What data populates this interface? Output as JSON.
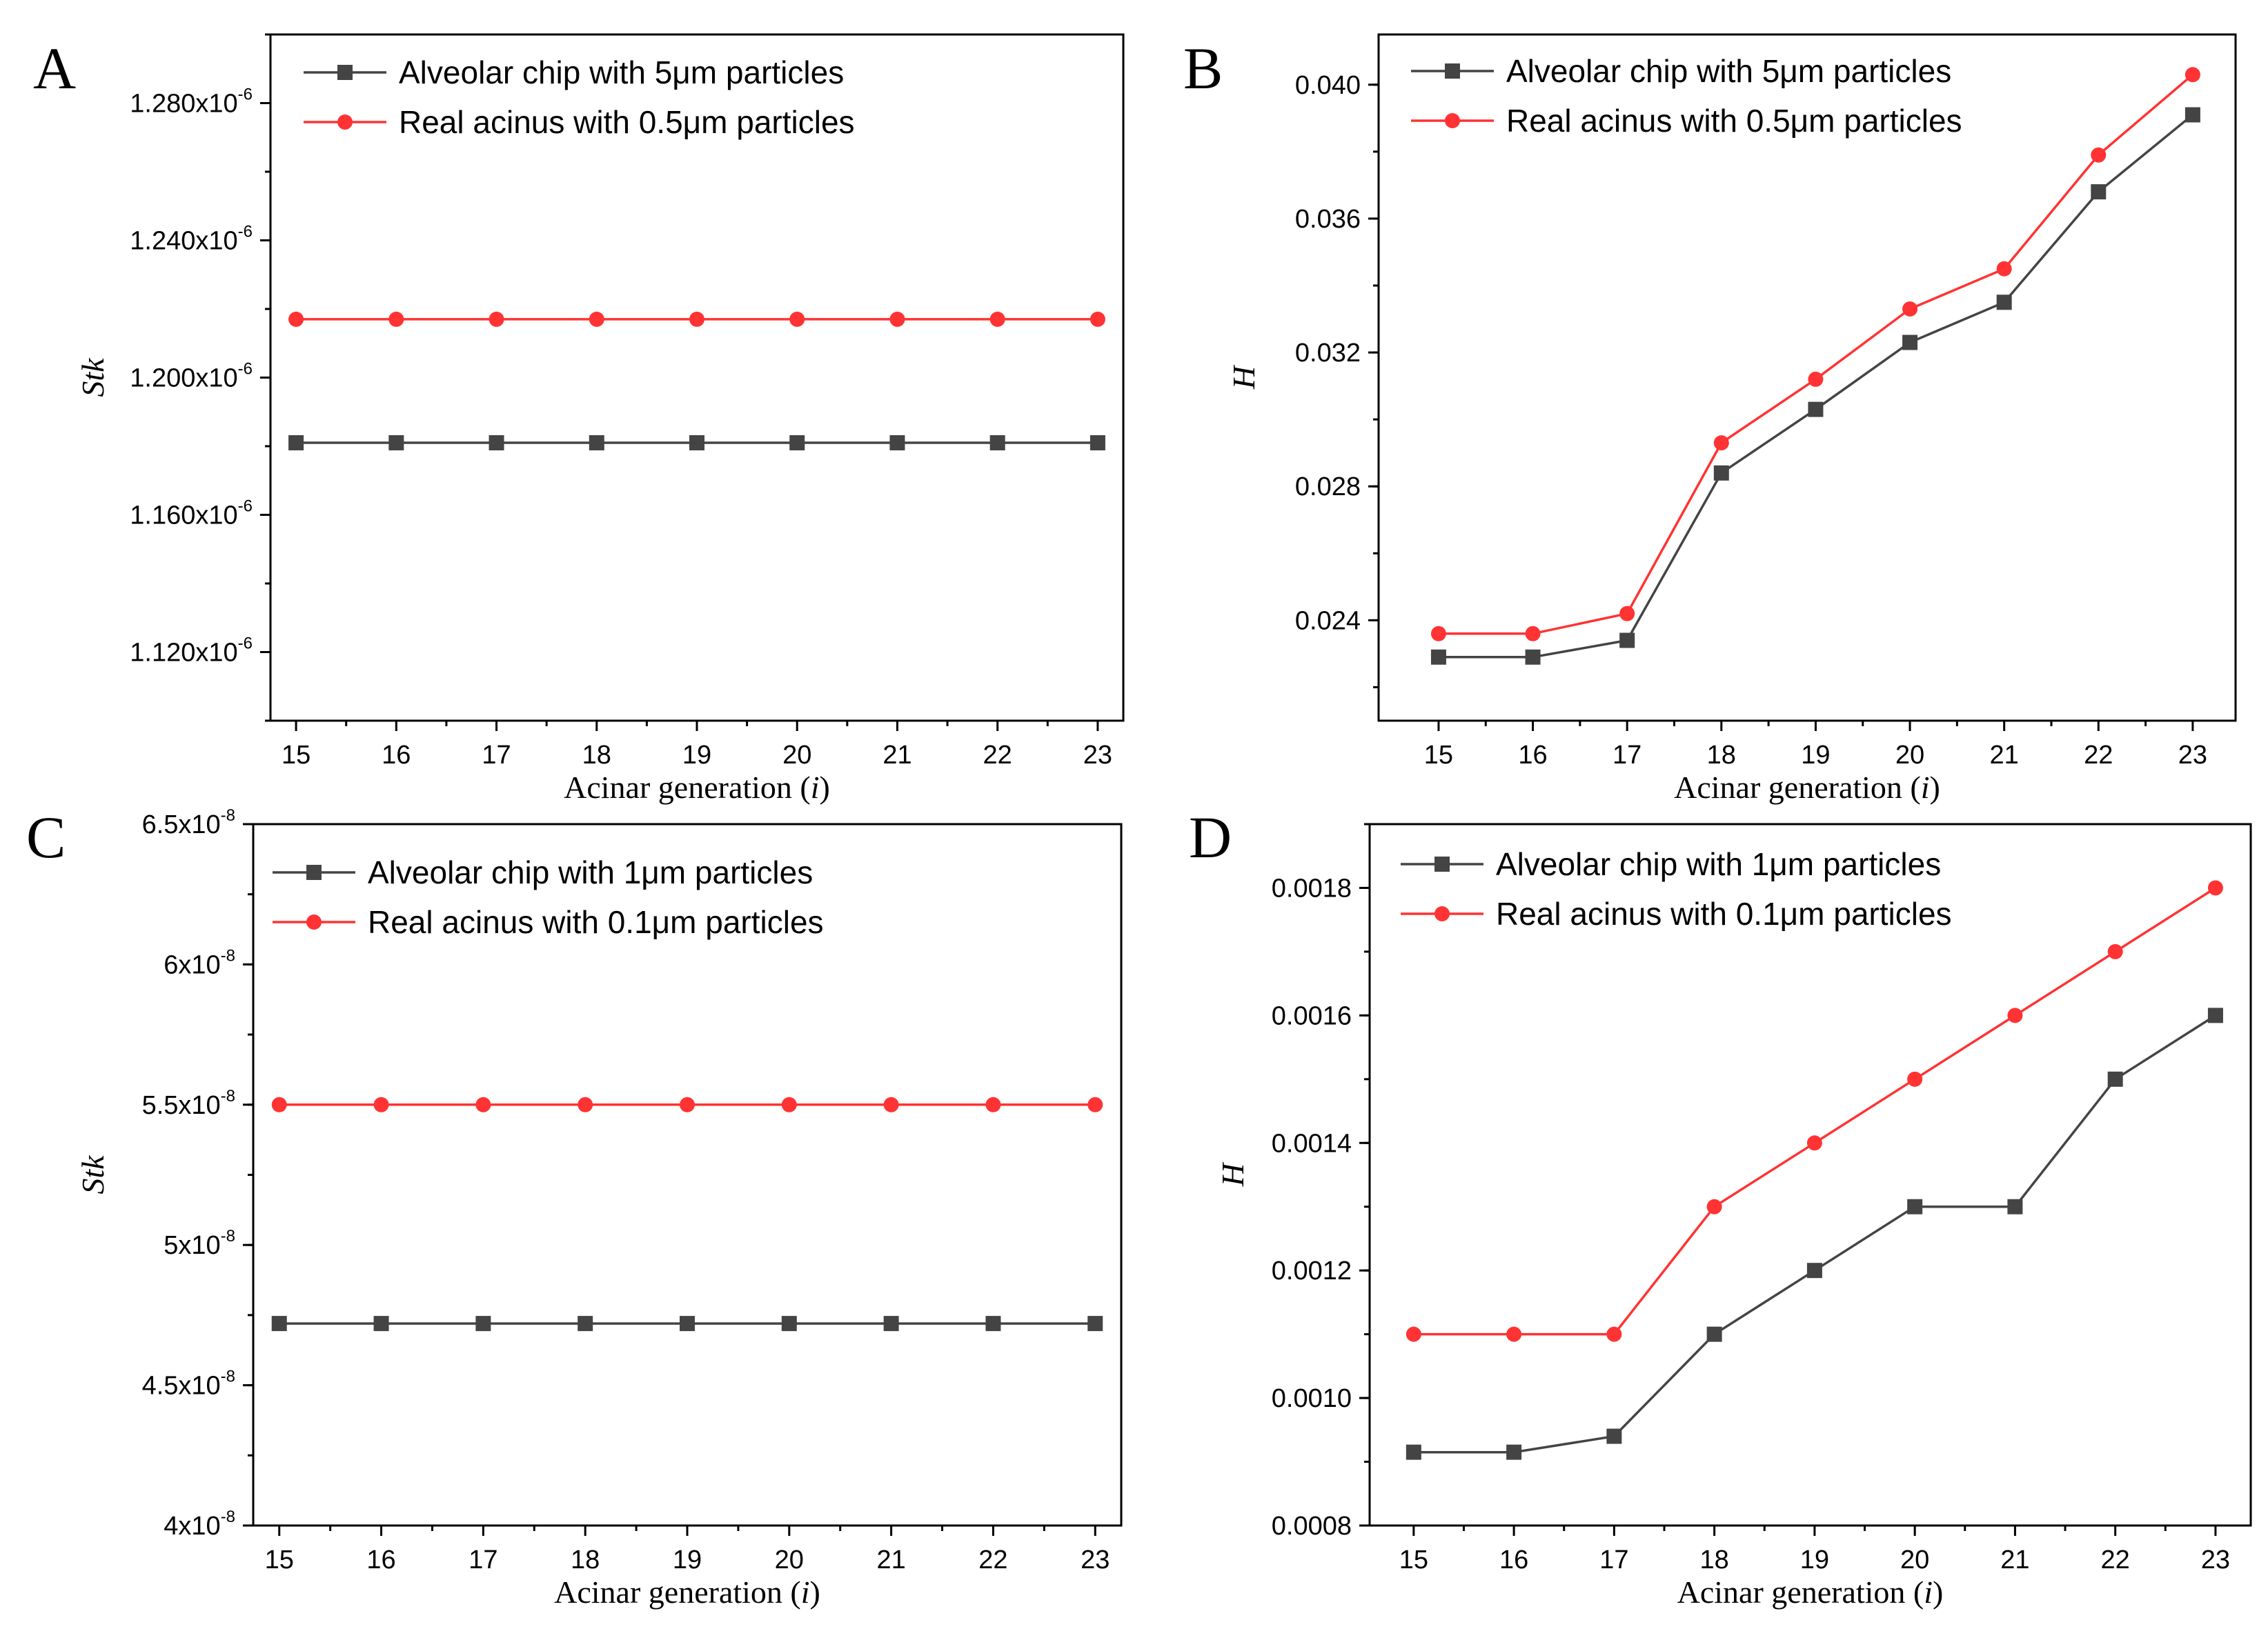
{
  "chart_data": [
    {
      "type": "line",
      "panel_label": "A",
      "categories": [
        "15",
        "16",
        "17",
        "18",
        "19",
        "20",
        "21",
        "22",
        "23"
      ],
      "xlabel": {
        "prefix": "Acinar generation (",
        "italic": "i",
        "suffix": ")"
      },
      "ylabel": "Stk",
      "ylim": [
        1.1e-06,
        1.3e-06
      ],
      "y_major_ticks": [
        1.12e-06,
        1.16e-06,
        1.2e-06,
        1.24e-06,
        1.28e-06
      ],
      "y_minor_step": 2e-08,
      "y_tick_labels": [
        {
          "mant": "1.120x10",
          "exp": "-6"
        },
        {
          "mant": "1.160x10",
          "exp": "-6"
        },
        {
          "mant": "1.200x10",
          "exp": "-6"
        },
        {
          "mant": "1.240x10",
          "exp": "-6"
        },
        {
          "mant": "1.280x10",
          "exp": "-6"
        }
      ],
      "legend": "top-left",
      "series": [
        {
          "name": "Alveolar chip with 5μm particles",
          "marker": "square",
          "color": "#444444",
          "values": [
            1.181e-06,
            1.181e-06,
            1.181e-06,
            1.181e-06,
            1.181e-06,
            1.181e-06,
            1.181e-06,
            1.181e-06,
            1.181e-06
          ]
        },
        {
          "name": "Real acinus with 0.5μm particles",
          "marker": "circle",
          "color": "#ff3333",
          "values": [
            1.217e-06,
            1.217e-06,
            1.217e-06,
            1.217e-06,
            1.217e-06,
            1.217e-06,
            1.217e-06,
            1.217e-06,
            1.217e-06
          ]
        }
      ]
    },
    {
      "type": "line",
      "panel_label": "B",
      "categories": [
        "15",
        "16",
        "17",
        "18",
        "19",
        "20",
        "21",
        "22",
        "23"
      ],
      "xlabel": {
        "prefix": "Acinar generation (",
        "italic": "i",
        "suffix": ")"
      },
      "ylabel": "H",
      "ylim": [
        0.021,
        0.0415
      ],
      "y_major_ticks": [
        0.024,
        0.028,
        0.032,
        0.036,
        0.04
      ],
      "y_minor_step": 0.002,
      "y_tick_labels": [
        {
          "mant": "0.024"
        },
        {
          "mant": "0.028"
        },
        {
          "mant": "0.032"
        },
        {
          "mant": "0.036"
        },
        {
          "mant": "0.040"
        }
      ],
      "legend": "top-left",
      "series": [
        {
          "name": "Alveolar chip with 5μm particles",
          "marker": "square",
          "color": "#444444",
          "values": [
            0.0229,
            0.0229,
            0.0234,
            0.0284,
            0.0303,
            0.0323,
            0.0335,
            0.0368,
            0.0391
          ]
        },
        {
          "name": "Real acinus with 0.5μm particles",
          "marker": "circle",
          "color": "#ff3333",
          "values": [
            0.0236,
            0.0236,
            0.0242,
            0.0293,
            0.0312,
            0.0333,
            0.0345,
            0.0379,
            0.0403
          ]
        }
      ]
    },
    {
      "type": "line",
      "panel_label": "C",
      "categories": [
        "15",
        "16",
        "17",
        "18",
        "19",
        "20",
        "21",
        "22",
        "23"
      ],
      "xlabel": {
        "prefix": "Acinar generation (",
        "italic": "i",
        "suffix": ")"
      },
      "ylabel": "Stk",
      "ylim": [
        4e-08,
        6.5e-08
      ],
      "y_major_ticks": [
        4e-08,
        4.5e-08,
        5e-08,
        5.5e-08,
        6e-08,
        6.5e-08
      ],
      "y_minor_step": 2.5e-09,
      "y_tick_labels": [
        {
          "mant": "4x10",
          "exp": "-8"
        },
        {
          "mant": "4.5x10",
          "exp": "-8"
        },
        {
          "mant": "5x10",
          "exp": "-8"
        },
        {
          "mant": "5.5x10",
          "exp": "-8"
        },
        {
          "mant": "6x10",
          "exp": "-8"
        },
        {
          "mant": "6.5x10",
          "exp": "-8"
        }
      ],
      "legend": "top-left",
      "series": [
        {
          "name": "Alveolar chip with 1μm particles",
          "marker": "square",
          "color": "#444444",
          "values": [
            4.72e-08,
            4.72e-08,
            4.72e-08,
            4.72e-08,
            4.72e-08,
            4.72e-08,
            4.72e-08,
            4.72e-08,
            4.72e-08
          ]
        },
        {
          "name": "Real acinus with 0.1μm particles",
          "marker": "circle",
          "color": "#ff3333",
          "values": [
            5.5e-08,
            5.5e-08,
            5.5e-08,
            5.5e-08,
            5.5e-08,
            5.5e-08,
            5.5e-08,
            5.5e-08,
            5.5e-08
          ]
        }
      ]
    },
    {
      "type": "line",
      "panel_label": "D",
      "categories": [
        "15",
        "16",
        "17",
        "18",
        "19",
        "20",
        "21",
        "22",
        "23"
      ],
      "xlabel": {
        "prefix": "Acinar generation (",
        "italic": "i",
        "suffix": ")"
      },
      "ylabel": "H",
      "ylim": [
        0.0008,
        0.0019
      ],
      "y_major_ticks": [
        0.0008,
        0.001,
        0.0012,
        0.0014,
        0.0016,
        0.0018
      ],
      "y_minor_step": 0.0001,
      "y_tick_labels": [
        {
          "mant": "0.0008"
        },
        {
          "mant": "0.0010"
        },
        {
          "mant": "0.0012"
        },
        {
          "mant": "0.0014"
        },
        {
          "mant": "0.0016"
        },
        {
          "mant": "0.0018"
        }
      ],
      "legend": "top-left",
      "series": [
        {
          "name": "Alveolar chip with 1μm particles",
          "marker": "square",
          "color": "#444444",
          "values": [
            0.000915,
            0.000915,
            0.00094,
            0.0011,
            0.0012,
            0.0013,
            0.0013,
            0.0015,
            0.0016
          ]
        },
        {
          "name": "Real acinus with 0.1μm particles",
          "marker": "circle",
          "color": "#ff3333",
          "values": [
            0.0011,
            0.0011,
            0.0011,
            0.0013,
            0.0014,
            0.0015,
            0.0016,
            0.0017,
            0.0018
          ]
        }
      ]
    }
  ]
}
